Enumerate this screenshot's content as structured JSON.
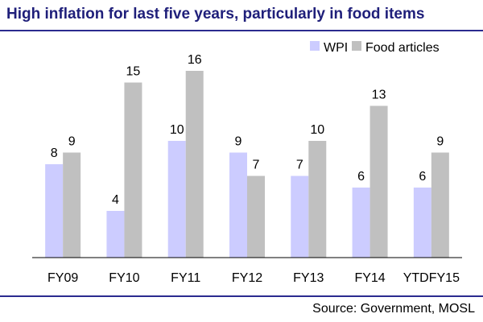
{
  "chart_data": {
    "type": "bar",
    "title": "High inflation for last five years, particularly in food items",
    "categories": [
      "FY09",
      "FY10",
      "FY11",
      "FY12",
      "FY13",
      "FY14",
      "YTDFY15"
    ],
    "series": [
      {
        "name": "WPI",
        "values": [
          8,
          4,
          10,
          9,
          7,
          6,
          6
        ],
        "color": "#ccccff"
      },
      {
        "name": "Food articles",
        "values": [
          9,
          15,
          16,
          7,
          10,
          13,
          9
        ],
        "color": "#c0c0c0"
      }
    ],
    "xlabel": "",
    "ylabel": "",
    "ylim": [
      0,
      16
    ],
    "grid": false,
    "legend_position": "top-right",
    "data_labels": true
  },
  "source": "Source: Government, MOSL",
  "colors": {
    "title": "#1f1f7a",
    "rule": "#2b2b8f",
    "axis": "#000000"
  }
}
